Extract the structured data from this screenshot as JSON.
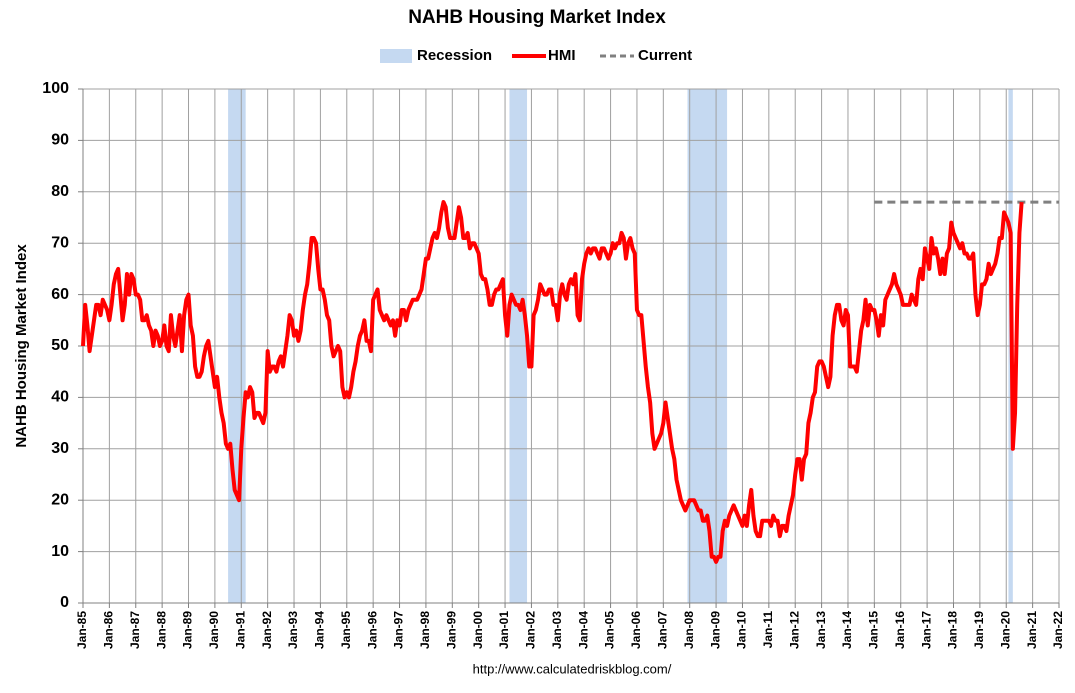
{
  "chart_data": {
    "type": "line",
    "title": "NAHB Housing Market Index",
    "y_label": "NAHB Housing Market Index",
    "source": "http://www.calculatedriskblog.com/",
    "grid": true,
    "ylim": [
      0,
      100
    ],
    "yticks": [
      0,
      10,
      20,
      30,
      40,
      50,
      60,
      70,
      80,
      90,
      100
    ],
    "xlim": [
      "1985-01",
      "2022-01"
    ],
    "xticks": [
      {
        "value": "1985-01",
        "label": "Jan-85"
      },
      {
        "value": "1986-01",
        "label": "Jan-86"
      },
      {
        "value": "1987-01",
        "label": "Jan-87"
      },
      {
        "value": "1988-01",
        "label": "Jan-88"
      },
      {
        "value": "1989-01",
        "label": "Jan-89"
      },
      {
        "value": "1990-01",
        "label": "Jan-90"
      },
      {
        "value": "1991-01",
        "label": "Jan-91"
      },
      {
        "value": "1992-01",
        "label": "Jan-92"
      },
      {
        "value": "1993-01",
        "label": "Jan-93"
      },
      {
        "value": "1994-01",
        "label": "Jan-94"
      },
      {
        "value": "1995-01",
        "label": "Jan-95"
      },
      {
        "value": "1996-01",
        "label": "Jan-96"
      },
      {
        "value": "1997-01",
        "label": "Jan-97"
      },
      {
        "value": "1998-01",
        "label": "Jan-98"
      },
      {
        "value": "1999-01",
        "label": "Jan-99"
      },
      {
        "value": "2000-01",
        "label": "Jan-00"
      },
      {
        "value": "2001-01",
        "label": "Jan-01"
      },
      {
        "value": "2002-01",
        "label": "Jan-02"
      },
      {
        "value": "2003-01",
        "label": "Jan-03"
      },
      {
        "value": "2004-01",
        "label": "Jan-04"
      },
      {
        "value": "2005-01",
        "label": "Jan-05"
      },
      {
        "value": "2006-01",
        "label": "Jan-06"
      },
      {
        "value": "2007-01",
        "label": "Jan-07"
      },
      {
        "value": "2008-01",
        "label": "Jan-08"
      },
      {
        "value": "2009-01",
        "label": "Jan-09"
      },
      {
        "value": "2010-01",
        "label": "Jan-10"
      },
      {
        "value": "2011-01",
        "label": "Jan-11"
      },
      {
        "value": "2012-01",
        "label": "Jan-12"
      },
      {
        "value": "2013-01",
        "label": "Jan-13"
      },
      {
        "value": "2014-01",
        "label": "Jan-14"
      },
      {
        "value": "2015-01",
        "label": "Jan-15"
      },
      {
        "value": "2016-01",
        "label": "Jan-16"
      },
      {
        "value": "2017-01",
        "label": "Jan-17"
      },
      {
        "value": "2018-01",
        "label": "Jan-18"
      },
      {
        "value": "2019-01",
        "label": "Jan-19"
      },
      {
        "value": "2020-01",
        "label": "Jan-20"
      },
      {
        "value": "2021-01",
        "label": "Jan-21"
      },
      {
        "value": "2022-01",
        "label": "Jan-22"
      }
    ],
    "recession": {
      "name": "Recession",
      "color": "#c5d9f1",
      "periods": [
        [
          "1990-07",
          "1991-03"
        ],
        [
          "2001-03",
          "2001-11"
        ],
        [
          "2007-12",
          "2009-06"
        ],
        [
          "2020-02",
          "2020-04"
        ]
      ]
    },
    "current": {
      "name": "Current",
      "color": "#808080",
      "value": 78,
      "start": "2015-01"
    },
    "x": [
      "1985-01",
      "1985-02",
      "1985-03",
      "1985-04",
      "1985-05",
      "1985-06",
      "1985-07",
      "1985-08",
      "1985-09",
      "1985-10",
      "1985-11",
      "1985-12",
      "1986-01",
      "1986-02",
      "1986-03",
      "1986-04",
      "1986-05",
      "1986-06",
      "1986-07",
      "1986-08",
      "1986-09",
      "1986-10",
      "1986-11",
      "1986-12",
      "1987-01",
      "1987-02",
      "1987-03",
      "1987-04",
      "1987-05",
      "1987-06",
      "1987-07",
      "1987-08",
      "1987-09",
      "1987-10",
      "1987-11",
      "1987-12",
      "1988-01",
      "1988-02",
      "1988-03",
      "1988-04",
      "1988-05",
      "1988-06",
      "1988-07",
      "1988-08",
      "1988-09",
      "1988-10",
      "1988-11",
      "1988-12",
      "1989-01",
      "1989-02",
      "1989-03",
      "1989-04",
      "1989-05",
      "1989-06",
      "1989-07",
      "1989-08",
      "1989-09",
      "1989-10",
      "1989-11",
      "1989-12",
      "1990-01",
      "1990-02",
      "1990-03",
      "1990-04",
      "1990-05",
      "1990-06",
      "1990-07",
      "1990-08",
      "1990-09",
      "1990-10",
      "1990-11",
      "1990-12",
      "1991-01",
      "1991-02",
      "1991-03",
      "1991-04",
      "1991-05",
      "1991-06",
      "1991-07",
      "1991-08",
      "1991-09",
      "1991-10",
      "1991-11",
      "1991-12",
      "1992-01",
      "1992-02",
      "1992-03",
      "1992-04",
      "1992-05",
      "1992-06",
      "1992-07",
      "1992-08",
      "1992-09",
      "1992-10",
      "1992-11",
      "1992-12",
      "1993-01",
      "1993-02",
      "1993-03",
      "1993-04",
      "1993-05",
      "1993-06",
      "1993-07",
      "1993-08",
      "1993-09",
      "1993-10",
      "1993-11",
      "1993-12",
      "1994-01",
      "1994-02",
      "1994-03",
      "1994-04",
      "1994-05",
      "1994-06",
      "1994-07",
      "1994-08",
      "1994-09",
      "1994-10",
      "1994-11",
      "1994-12",
      "1995-01",
      "1995-02",
      "1995-03",
      "1995-04",
      "1995-05",
      "1995-06",
      "1995-07",
      "1995-08",
      "1995-09",
      "1995-10",
      "1995-11",
      "1995-12",
      "1996-01",
      "1996-02",
      "1996-03",
      "1996-04",
      "1996-05",
      "1996-06",
      "1996-07",
      "1996-08",
      "1996-09",
      "1996-10",
      "1996-11",
      "1996-12",
      "1997-01",
      "1997-02",
      "1997-03",
      "1997-04",
      "1997-05",
      "1997-06",
      "1997-07",
      "1997-08",
      "1997-09",
      "1997-10",
      "1997-11",
      "1997-12",
      "1998-01",
      "1998-02",
      "1998-03",
      "1998-04",
      "1998-05",
      "1998-06",
      "1998-07",
      "1998-08",
      "1998-09",
      "1998-10",
      "1998-11",
      "1998-12",
      "1999-01",
      "1999-02",
      "1999-03",
      "1999-04",
      "1999-05",
      "1999-06",
      "1999-07",
      "1999-08",
      "1999-09",
      "1999-10",
      "1999-11",
      "1999-12",
      "2000-01",
      "2000-02",
      "2000-03",
      "2000-04",
      "2000-05",
      "2000-06",
      "2000-07",
      "2000-08",
      "2000-09",
      "2000-10",
      "2000-11",
      "2000-12",
      "2001-01",
      "2001-02",
      "2001-03",
      "2001-04",
      "2001-05",
      "2001-06",
      "2001-07",
      "2001-08",
      "2001-09",
      "2001-10",
      "2001-11",
      "2001-12",
      "2002-01",
      "2002-02",
      "2002-03",
      "2002-04",
      "2002-05",
      "2002-06",
      "2002-07",
      "2002-08",
      "2002-09",
      "2002-10",
      "2002-11",
      "2002-12",
      "2003-01",
      "2003-02",
      "2003-03",
      "2003-04",
      "2003-05",
      "2003-06",
      "2003-07",
      "2003-08",
      "2003-09",
      "2003-10",
      "2003-11",
      "2003-12",
      "2004-01",
      "2004-02",
      "2004-03",
      "2004-04",
      "2004-05",
      "2004-06",
      "2004-07",
      "2004-08",
      "2004-09",
      "2004-10",
      "2004-11",
      "2004-12",
      "2005-01",
      "2005-02",
      "2005-03",
      "2005-04",
      "2005-05",
      "2005-06",
      "2005-07",
      "2005-08",
      "2005-09",
      "2005-10",
      "2005-11",
      "2005-12",
      "2006-01",
      "2006-02",
      "2006-03",
      "2006-04",
      "2006-05",
      "2006-06",
      "2006-07",
      "2006-08",
      "2006-09",
      "2006-10",
      "2006-11",
      "2006-12",
      "2007-01",
      "2007-02",
      "2007-03",
      "2007-04",
      "2007-05",
      "2007-06",
      "2007-07",
      "2007-08",
      "2007-09",
      "2007-10",
      "2007-11",
      "2007-12",
      "2008-01",
      "2008-02",
      "2008-03",
      "2008-04",
      "2008-05",
      "2008-06",
      "2008-07",
      "2008-08",
      "2008-09",
      "2008-10",
      "2008-11",
      "2008-12",
      "2009-01",
      "2009-02",
      "2009-03",
      "2009-04",
      "2009-05",
      "2009-06",
      "2009-07",
      "2009-08",
      "2009-09",
      "2009-10",
      "2009-11",
      "2009-12",
      "2010-01",
      "2010-02",
      "2010-03",
      "2010-04",
      "2010-05",
      "2010-06",
      "2010-07",
      "2010-08",
      "2010-09",
      "2010-10",
      "2010-11",
      "2010-12",
      "2011-01",
      "2011-02",
      "2011-03",
      "2011-04",
      "2011-05",
      "2011-06",
      "2011-07",
      "2011-08",
      "2011-09",
      "2011-10",
      "2011-11",
      "2011-12",
      "2012-01",
      "2012-02",
      "2012-03",
      "2012-04",
      "2012-05",
      "2012-06",
      "2012-07",
      "2012-08",
      "2012-09",
      "2012-10",
      "2012-11",
      "2012-12",
      "2013-01",
      "2013-02",
      "2013-03",
      "2013-04",
      "2013-05",
      "2013-06",
      "2013-07",
      "2013-08",
      "2013-09",
      "2013-10",
      "2013-11",
      "2013-12",
      "2014-01",
      "2014-02",
      "2014-03",
      "2014-04",
      "2014-05",
      "2014-06",
      "2014-07",
      "2014-08",
      "2014-09",
      "2014-10",
      "2014-11",
      "2014-12",
      "2015-01",
      "2015-02",
      "2015-03",
      "2015-04",
      "2015-05",
      "2015-06",
      "2015-07",
      "2015-08",
      "2015-09",
      "2015-10",
      "2015-11",
      "2015-12",
      "2016-01",
      "2016-02",
      "2016-03",
      "2016-04",
      "2016-05",
      "2016-06",
      "2016-07",
      "2016-08",
      "2016-09",
      "2016-10",
      "2016-11",
      "2016-12",
      "2017-01",
      "2017-02",
      "2017-03",
      "2017-04",
      "2017-05",
      "2017-06",
      "2017-07",
      "2017-08",
      "2017-09",
      "2017-10",
      "2017-11",
      "2017-12",
      "2018-01",
      "2018-02",
      "2018-03",
      "2018-04",
      "2018-05",
      "2018-06",
      "2018-07",
      "2018-08",
      "2018-09",
      "2018-10",
      "2018-11",
      "2018-12",
      "2019-01",
      "2019-02",
      "2019-03",
      "2019-04",
      "2019-05",
      "2019-06",
      "2019-07",
      "2019-08",
      "2019-09",
      "2019-10",
      "2019-11",
      "2019-12",
      "2020-01",
      "2020-02",
      "2020-03",
      "2020-04",
      "2020-05",
      "2020-06",
      "2020-07",
      "2020-08"
    ],
    "series": [
      {
        "name": "HMI",
        "color": "#ff0000",
        "values": [
          50,
          58,
          54,
          49,
          52,
          55,
          58,
          58,
          56,
          59,
          58,
          57,
          55,
          58,
          62,
          64,
          65,
          60,
          55,
          58,
          64,
          60,
          64,
          63,
          60,
          60,
          59,
          55,
          55,
          56,
          54,
          53,
          50,
          53,
          52,
          50,
          51,
          54,
          50,
          49,
          56,
          52,
          50,
          53,
          56,
          49,
          56,
          59,
          60,
          54,
          52,
          46,
          44,
          44,
          45,
          48,
          50,
          51,
          48,
          45,
          42,
          44,
          40,
          37,
          35,
          31,
          30,
          31,
          26,
          22,
          21,
          20,
          30,
          36,
          41,
          40,
          42,
          41,
          36,
          37,
          37,
          36,
          35,
          37,
          49,
          45,
          46,
          46,
          45,
          47,
          48,
          46,
          49,
          52,
          56,
          55,
          52,
          53,
          51,
          53,
          57,
          60,
          62,
          66,
          71,
          71,
          70,
          65,
          61,
          61,
          59,
          56,
          55,
          50,
          48,
          49,
          50,
          49,
          42,
          40,
          41,
          40,
          42,
          45,
          47,
          50,
          52,
          53,
          55,
          51,
          51,
          49,
          59,
          60,
          61,
          57,
          56,
          55,
          56,
          55,
          54,
          55,
          52,
          55,
          54,
          57,
          57,
          55,
          57,
          58,
          59,
          59,
          59,
          60,
          61,
          64,
          67,
          67,
          69,
          71,
          72,
          71,
          73,
          76,
          78,
          77,
          73,
          71,
          71,
          71,
          74,
          77,
          75,
          71,
          71,
          72,
          69,
          70,
          70,
          69,
          68,
          64,
          63,
          63,
          61,
          58,
          58,
          60,
          61,
          61,
          62,
          63,
          56,
          52,
          58,
          60,
          59,
          58,
          58,
          57,
          59,
          56,
          52,
          46,
          46,
          56,
          57,
          59,
          62,
          61,
          60,
          60,
          61,
          61,
          58,
          58,
          55,
          60,
          62,
          60,
          59,
          62,
          63,
          62,
          64,
          56,
          55,
          63,
          66,
          68,
          69,
          68,
          69,
          69,
          68,
          67,
          69,
          69,
          68,
          67,
          68,
          70,
          69,
          70,
          70,
          72,
          71,
          67,
          70,
          71,
          69,
          68,
          57,
          56,
          56,
          51,
          46,
          42,
          39,
          33,
          30,
          31,
          32,
          33,
          35,
          39,
          36,
          33,
          30,
          28,
          24,
          22,
          20,
          19,
          18,
          19,
          20,
          20,
          20,
          19,
          18,
          18,
          16,
          16,
          17,
          14,
          9,
          9,
          8,
          9,
          9,
          14,
          16,
          15,
          17,
          18,
          19,
          18,
          17,
          16,
          15,
          17,
          15,
          19,
          22,
          17,
          14,
          13,
          13,
          16,
          16,
          16,
          16,
          15,
          17,
          16,
          16,
          13,
          15,
          15,
          14,
          17,
          19,
          21,
          25,
          28,
          28,
          24,
          28,
          29,
          35,
          37,
          40,
          41,
          46,
          47,
          47,
          46,
          44,
          42,
          44,
          52,
          56,
          58,
          58,
          55,
          54,
          57,
          56,
          46,
          46,
          46,
          45,
          49,
          53,
          55,
          59,
          54,
          58,
          57,
          57,
          55,
          52,
          56,
          54,
          59,
          60,
          61,
          62,
          64,
          62,
          61,
          60,
          58,
          58,
          58,
          58,
          60,
          59,
          58,
          63,
          65,
          63,
          69,
          67,
          65,
          71,
          68,
          69,
          67,
          64,
          67,
          64,
          68,
          69,
          74,
          72,
          71,
          70,
          69,
          70,
          68,
          68,
          67,
          67,
          68,
          60,
          56,
          58,
          62,
          62,
          63,
          66,
          64,
          65,
          66,
          68,
          71,
          71,
          76,
          75,
          74,
          72,
          30,
          37,
          58,
          72,
          78
        ]
      }
    ]
  }
}
